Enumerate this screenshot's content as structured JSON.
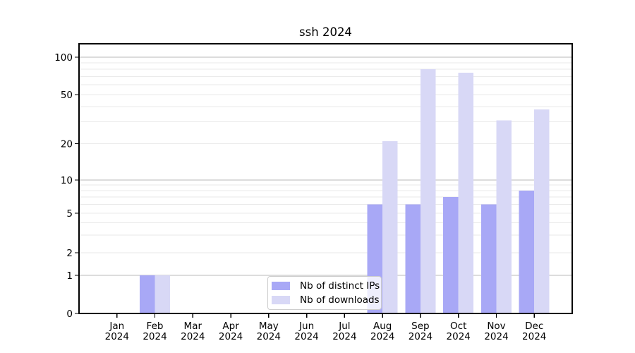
{
  "chart_data": {
    "type": "bar",
    "title": "ssh 2024",
    "categories": [
      "Jan",
      "Feb",
      "Mar",
      "Apr",
      "May",
      "Jun",
      "Jul",
      "Aug",
      "Sep",
      "Oct",
      "Nov",
      "Dec"
    ],
    "x_tick_second_line": "2024",
    "series": [
      {
        "name": "Nb of distinct IPs",
        "color": "#a8a8f6",
        "values": [
          0,
          1,
          0,
          0,
          0,
          0,
          0,
          6,
          6,
          7,
          6,
          8
        ]
      },
      {
        "name": "Nb of downloads",
        "color": "#d8d8f6",
        "values": [
          0,
          1,
          0,
          0,
          0,
          0,
          0,
          21,
          80,
          75,
          31,
          38
        ]
      }
    ],
    "y_ticks": [
      0,
      1,
      2,
      5,
      10,
      20,
      50,
      100
    ],
    "y_major_gridlines": [
      1,
      10,
      100
    ],
    "y_minor_gridlines": [
      2,
      3,
      4,
      5,
      6,
      7,
      8,
      9,
      20,
      30,
      40,
      50,
      60,
      70,
      80,
      90
    ],
    "y_scale": "log-above-1-linear-below-1",
    "ylim_approx": [
      0,
      130
    ],
    "grid": true,
    "legend_position": "lower center",
    "colors": {
      "major_grid": "#b8b8b8",
      "minor_grid": "#eaeaea",
      "axis": "#000000",
      "text": "#000000",
      "background": "#ffffff"
    }
  }
}
